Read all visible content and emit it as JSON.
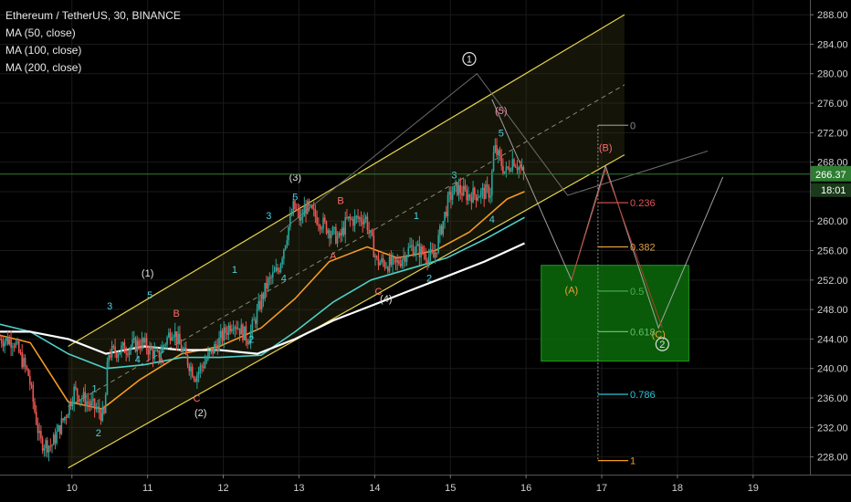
{
  "header": {
    "symbol_line": "Ethereum / TetherUS, 30, BINANCE",
    "indicators": [
      "MA (50, close)",
      "MA (100, close)",
      "MA (200, close)"
    ]
  },
  "colors": {
    "background": "#000000",
    "grid": "#1a1a1a",
    "up_candle": "#26a69a",
    "down_candle": "#ef5350",
    "ma50": "#f59a23",
    "ma100": "#4dd0c8",
    "ma200": "#ffffff",
    "channel": "#e5d34a",
    "wave_label": "#4dd0e1",
    "wave_label_alt": "#ff6b6b",
    "target_zone": "#0a6b0a",
    "price_line": "#2e7d32"
  },
  "chart_data": {
    "type": "candlestick",
    "title": "Ethereum / TetherUS, 30, BINANCE",
    "x_axis": {
      "type": "date",
      "ticks": [
        "10",
        "11",
        "12",
        "13",
        "14",
        "15",
        "16",
        "17",
        "18",
        "19"
      ],
      "range": [
        9.05,
        19.75
      ]
    },
    "y_axis": {
      "range": [
        225.6,
        290.0
      ],
      "ticks": [
        "228.00",
        "232.00",
        "236.00",
        "240.00",
        "244.00",
        "248.00",
        "252.00",
        "256.00",
        "260.00",
        "264.00",
        "268.00",
        "272.00",
        "276.00",
        "280.00",
        "284.00",
        "288.00"
      ]
    },
    "current_price": {
      "value": 266.37,
      "label": "266.37",
      "countdown": "18:01"
    },
    "price_path": [
      [
        9.05,
        244.0
      ],
      [
        9.25,
        243.8
      ],
      [
        9.45,
        239.0
      ],
      [
        9.6,
        230.0
      ],
      [
        9.75,
        229.5
      ],
      [
        9.95,
        234.0
      ],
      [
        10.05,
        237.0
      ],
      [
        10.45,
        233.5
      ],
      [
        10.5,
        242.0
      ],
      [
        10.95,
        243.5
      ],
      [
        11.15,
        241.5
      ],
      [
        11.35,
        245.5
      ],
      [
        11.45,
        243.0
      ],
      [
        11.65,
        239.0
      ],
      [
        12.15,
        246.5
      ],
      [
        12.35,
        244.0
      ],
      [
        12.6,
        251.5
      ],
      [
        12.75,
        253.5
      ],
      [
        12.95,
        262.0
      ],
      [
        13.05,
        260.0
      ],
      [
        13.1,
        262.0
      ],
      [
        13.55,
        257.5
      ],
      [
        13.65,
        260.0
      ],
      [
        13.9,
        260.5
      ],
      [
        14.05,
        254.5
      ],
      [
        14.3,
        254.0
      ],
      [
        14.5,
        256.5
      ],
      [
        14.8,
        255.0
      ],
      [
        15.0,
        263.0
      ],
      [
        15.1,
        264.5
      ],
      [
        15.25,
        263.5
      ],
      [
        15.55,
        264.0
      ],
      [
        15.6,
        270.0
      ],
      [
        15.75,
        266.5
      ],
      [
        15.85,
        268.5
      ],
      [
        15.98,
        266.4
      ]
    ],
    "series": [
      {
        "name": "MA (50, close)",
        "values": [
          [
            9.05,
            244.5
          ],
          [
            9.45,
            243.5
          ],
          [
            9.95,
            235.5
          ],
          [
            10.4,
            234.5
          ],
          [
            10.9,
            238.5
          ],
          [
            11.45,
            242.0
          ],
          [
            11.95,
            243.0
          ],
          [
            12.5,
            245.5
          ],
          [
            12.95,
            249.5
          ],
          [
            13.4,
            254.5
          ],
          [
            13.9,
            256.5
          ],
          [
            14.3,
            255.0
          ],
          [
            14.8,
            256.0
          ],
          [
            15.25,
            258.5
          ],
          [
            15.75,
            263.0
          ],
          [
            15.98,
            264.0
          ]
        ]
      },
      {
        "name": "MA (100, close)",
        "values": [
          [
            9.05,
            246.0
          ],
          [
            9.45,
            245.0
          ],
          [
            9.95,
            242.0
          ],
          [
            10.45,
            240.0
          ],
          [
            10.95,
            240.5
          ],
          [
            11.45,
            241.5
          ],
          [
            11.95,
            241.5
          ],
          [
            12.5,
            241.8
          ],
          [
            12.95,
            245.0
          ],
          [
            13.45,
            249.0
          ],
          [
            13.95,
            252.0
          ],
          [
            14.45,
            253.5
          ],
          [
            14.95,
            255.0
          ],
          [
            15.45,
            257.5
          ],
          [
            15.98,
            260.5
          ]
        ]
      },
      {
        "name": "MA (200, close)",
        "values": [
          [
            9.05,
            245.0
          ],
          [
            9.45,
            245.0
          ],
          [
            9.95,
            244.0
          ],
          [
            10.45,
            242.0
          ],
          [
            10.95,
            243.0
          ],
          [
            11.45,
            242.5
          ],
          [
            11.95,
            242.5
          ],
          [
            12.45,
            242.0
          ],
          [
            12.95,
            244.0
          ],
          [
            13.45,
            246.5
          ],
          [
            13.95,
            248.5
          ],
          [
            14.45,
            250.5
          ],
          [
            14.95,
            252.5
          ],
          [
            15.45,
            254.5
          ],
          [
            15.98,
            257.0
          ]
        ]
      }
    ],
    "channel": {
      "upper": [
        [
          9.95,
          243.0
        ],
        [
          17.3,
          288.0
        ]
      ],
      "lower": [
        [
          9.95,
          226.5
        ],
        [
          17.3,
          269.0
        ]
      ],
      "mid": [
        [
          9.95,
          234.8
        ],
        [
          17.3,
          278.5
        ]
      ]
    },
    "wave_lines": [
      [
        [
          12.75,
          258.5
        ],
        [
          15.35,
          280.0
        ],
        [
          16.55,
          263.5
        ],
        [
          18.4,
          269.5
        ]
      ],
      [
        [
          15.55,
          276.5
        ],
        [
          16.6,
          252.0
        ],
        [
          17.05,
          267.5
        ],
        [
          17.75,
          245.5
        ],
        [
          18.6,
          266.0
        ]
      ],
      [
        [
          16.6,
          252.0
        ],
        [
          17.05,
          267.0
        ],
        [
          17.8,
          245.5
        ]
      ]
    ],
    "target_zone": [
      [
        16.2,
        254.0
      ],
      [
        18.15,
        241.0
      ]
    ],
    "fibonacci": [
      {
        "label": "0",
        "value": 273.0
      },
      {
        "label": "0.236",
        "value": 262.5
      },
      {
        "label": "0.382",
        "value": 256.5
      },
      {
        "label": "0.5",
        "value": 250.5
      },
      {
        "label": "0.618",
        "value": 245.0
      },
      {
        "label": "0.786",
        "value": 236.5
      },
      {
        "label": "1",
        "value": 227.5
      }
    ],
    "wave_labels": [
      {
        "text": "1",
        "x": 15.25,
        "y": 281.5,
        "style": "circle-white"
      },
      {
        "text": "(5)",
        "x": 15.67,
        "y": 274.5,
        "style": "pink"
      },
      {
        "text": "5",
        "x": 15.67,
        "y": 271.5,
        "style": "cyan"
      },
      {
        "text": "3",
        "x": 15.05,
        "y": 265.8,
        "style": "cyan"
      },
      {
        "text": "1",
        "x": 14.55,
        "y": 260.3,
        "style": "cyan"
      },
      {
        "text": "2",
        "x": 14.72,
        "y": 251.8,
        "style": "cyan"
      },
      {
        "text": "4",
        "x": 15.55,
        "y": 259.8,
        "style": "cyan"
      },
      {
        "text": "(3)",
        "x": 12.95,
        "y": 265.5,
        "style": "white"
      },
      {
        "text": "5",
        "x": 12.95,
        "y": 262.8,
        "style": "cyan"
      },
      {
        "text": "3",
        "x": 12.6,
        "y": 260.3,
        "style": "cyan"
      },
      {
        "text": "B",
        "x": 13.55,
        "y": 262.3,
        "style": "red"
      },
      {
        "text": "A",
        "x": 13.45,
        "y": 254.8,
        "style": "red"
      },
      {
        "text": "4",
        "x": 12.8,
        "y": 251.8,
        "style": "cyan"
      },
      {
        "text": "C",
        "x": 14.05,
        "y": 250.0,
        "style": "red"
      },
      {
        "text": "(4)",
        "x": 14.15,
        "y": 249.0,
        "style": "white"
      },
      {
        "text": "1",
        "x": 12.15,
        "y": 253.0,
        "style": "cyan"
      },
      {
        "text": "2",
        "x": 12.37,
        "y": 243.5,
        "style": "cyan"
      },
      {
        "text": "(1)",
        "x": 11.0,
        "y": 252.5,
        "style": "white"
      },
      {
        "text": "5",
        "x": 11.03,
        "y": 249.5,
        "style": "cyan"
      },
      {
        "text": "3",
        "x": 10.5,
        "y": 248.0,
        "style": "cyan"
      },
      {
        "text": "1",
        "x": 10.3,
        "y": 236.8,
        "style": "cyan"
      },
      {
        "text": "4",
        "x": 10.87,
        "y": 240.8,
        "style": "cyan"
      },
      {
        "text": "B",
        "x": 11.38,
        "y": 247.0,
        "style": "red"
      },
      {
        "text": "A",
        "x": 11.18,
        "y": 240.5,
        "style": "red"
      },
      {
        "text": "C",
        "x": 11.65,
        "y": 235.5,
        "style": "red"
      },
      {
        "text": "(2)",
        "x": 11.7,
        "y": 233.5,
        "style": "white"
      },
      {
        "text": "2",
        "x": 10.35,
        "y": 230.8,
        "style": "cyan"
      },
      {
        "text": "(B)",
        "x": 17.05,
        "y": 269.5,
        "style": "red"
      },
      {
        "text": "(A)",
        "x": 16.6,
        "y": 250.2,
        "style": "orange"
      },
      {
        "text": "(C)",
        "x": 17.75,
        "y": 244.2,
        "style": "orange"
      },
      {
        "text": "2",
        "x": 17.8,
        "y": 242.8,
        "style": "circle-white"
      }
    ]
  }
}
